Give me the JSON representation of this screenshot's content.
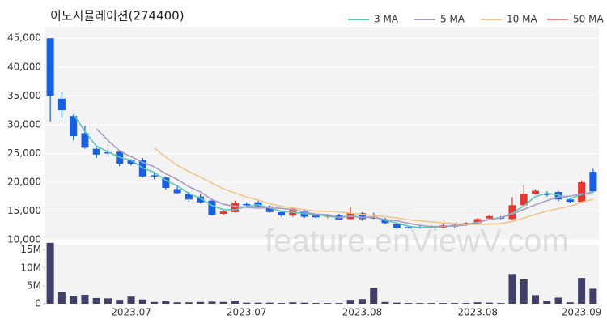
{
  "watermark": "feature.enViewV.com",
  "chart_data": [
    {
      "type": "candlestick",
      "title": "이노시뮬레이션(274400)",
      "up_color": "#e8352e",
      "down_color": "#1a5fe0",
      "open": [
        45000,
        34500,
        31500,
        28500,
        25800,
        25200,
        25300,
        23800,
        23800,
        21200,
        20800,
        18800,
        18000,
        17500,
        16800,
        14500,
        14800,
        16200,
        16500,
        15800,
        14800,
        14200,
        15000,
        14200,
        14000,
        14200,
        13600,
        14600,
        14000,
        13600,
        12700,
        12200,
        12200,
        12100,
        12100,
        12300,
        12600,
        12900,
        13700,
        13900,
        13600,
        16000,
        18000,
        18000,
        18300,
        17000,
        16600,
        21800
      ],
      "high": [
        45000,
        35700,
        31800,
        29800,
        26000,
        26000,
        25600,
        24000,
        24200,
        21800,
        21000,
        19300,
        18300,
        17900,
        16900,
        15200,
        16800,
        16500,
        16800,
        16000,
        15000,
        15500,
        15200,
        14400,
        14400,
        14500,
        15600,
        14800,
        14700,
        13800,
        12800,
        12400,
        12400,
        12500,
        12800,
        12800,
        13100,
        13800,
        14300,
        14100,
        17400,
        19500,
        18800,
        18400,
        18500,
        17200,
        20300,
        22300
      ],
      "low": [
        30500,
        31200,
        27300,
        25800,
        24200,
        24300,
        22800,
        22900,
        20800,
        20500,
        18700,
        17900,
        16600,
        16300,
        14200,
        14300,
        14700,
        15600,
        15600,
        14600,
        14000,
        14000,
        13800,
        13700,
        13800,
        13400,
        13500,
        13300,
        13600,
        12700,
        11900,
        11900,
        11900,
        12000,
        12000,
        12100,
        12400,
        12700,
        13600,
        13500,
        13400,
        15900,
        17800,
        17500,
        16700,
        16400,
        16400,
        18200
      ],
      "close": [
        35000,
        32500,
        28000,
        26000,
        24800,
        25000,
        23200,
        23200,
        21000,
        21000,
        19000,
        18100,
        17000,
        16500,
        14300,
        14900,
        16400,
        16000,
        15800,
        14800,
        14200,
        15400,
        14000,
        13900,
        14300,
        13500,
        14600,
        13600,
        13700,
        12900,
        12100,
        12100,
        12100,
        12300,
        12500,
        12600,
        12900,
        13600,
        14100,
        13700,
        16000,
        18000,
        18500,
        17800,
        17000,
        16600,
        20000,
        18400
      ],
      "lines": [
        {
          "name": "3 MA",
          "color": "#5cc8b6",
          "values": [
            null,
            null,
            31833,
            28833,
            26267,
            25267,
            24333,
            23800,
            22467,
            21733,
            20333,
            19367,
            18033,
            17200,
            15933,
            15233,
            15200,
            15767,
            16067,
            15533,
            14933,
            14800,
            14533,
            14433,
            14067,
            13900,
            14133,
            13900,
            13967,
            13400,
            12900,
            12367,
            12100,
            12167,
            12300,
            12467,
            12667,
            13033,
            13533,
            13800,
            14600,
            15900,
            17500,
            18100,
            17767,
            17133,
            17867,
            18333
          ]
        },
        {
          "name": "5 MA",
          "color": "#a99cc7",
          "values": [
            null,
            null,
            null,
            null,
            29260,
            27260,
            25400,
            24440,
            23440,
            22680,
            21480,
            20460,
            19220,
            18320,
            16980,
            16160,
            15820,
            15620,
            15480,
            15580,
            15440,
            15240,
            14840,
            14460,
            14360,
            13820,
            14060,
            13860,
            13920,
            13520,
            13280,
            12880,
            12500,
            12300,
            12340,
            12420,
            12580,
            12980,
            13540,
            13840,
            14460,
            15280,
            16060,
            16800,
            17460,
            17580,
            17980,
            17960
          ]
        },
        {
          "name": "10 MA",
          "color": "#f0c58f",
          "values": [
            null,
            null,
            null,
            null,
            null,
            null,
            null,
            null,
            null,
            25970,
            24370,
            22930,
            21830,
            20880,
            19830,
            18820,
            18140,
            17420,
            16900,
            16280,
            15800,
            15530,
            15230,
            14970,
            14970,
            14830,
            14650,
            14410,
            14200,
            14010,
            13800,
            13470,
            13280,
            13120,
            12940,
            12850,
            12680,
            12680,
            12720,
            12800,
            13190,
            13780,
            14420,
            14970,
            15420,
            15820,
            16530,
            17010
          ]
        },
        {
          "name": "50 MA",
          "color": "#f08a8a",
          "values": [
            null,
            null,
            null,
            null,
            null,
            null,
            null,
            null,
            null,
            null,
            null,
            null,
            null,
            null,
            null,
            null,
            null,
            null,
            null,
            null,
            null,
            null,
            null,
            null,
            null,
            null,
            null,
            null,
            null,
            null,
            null,
            null,
            null,
            null,
            null,
            null,
            null,
            null,
            null,
            null,
            null,
            null,
            null,
            null,
            null,
            null,
            null,
            null
          ]
        }
      ],
      "ylim": [
        10000,
        47000
      ],
      "yticks": [
        {
          "value": 10000,
          "label": "10,000"
        },
        {
          "value": 15000,
          "label": "15,000"
        },
        {
          "value": 20000,
          "label": "20,000"
        },
        {
          "value": 25000,
          "label": "25,000"
        },
        {
          "value": 30000,
          "label": "30,000"
        },
        {
          "value": 35000,
          "label": "35,000"
        },
        {
          "value": 40000,
          "label": "40,000"
        },
        {
          "value": 45000,
          "label": "45,000"
        }
      ],
      "grid": true,
      "legend": "top-right"
    },
    {
      "type": "bar",
      "color": "#3f3f68",
      "categories": [
        null,
        null,
        null,
        null,
        null,
        null,
        null,
        "2023.07",
        null,
        null,
        null,
        null,
        null,
        null,
        null,
        null,
        null,
        "2023.07",
        null,
        null,
        null,
        null,
        null,
        null,
        null,
        null,
        null,
        "2023.08",
        null,
        null,
        null,
        null,
        null,
        null,
        null,
        null,
        null,
        "2023.08",
        null,
        null,
        null,
        null,
        null,
        null,
        null,
        null,
        "2023.09",
        null
      ],
      "values": [
        17000000,
        3200000,
        2200000,
        2500000,
        1600000,
        1500000,
        1100000,
        2000000,
        1200000,
        500000,
        700000,
        400000,
        400000,
        500000,
        600000,
        500000,
        800000,
        300000,
        300000,
        300000,
        200000,
        400000,
        300000,
        200000,
        200000,
        200000,
        1100000,
        1300000,
        4500000,
        500000,
        300000,
        200000,
        200000,
        200000,
        200000,
        200000,
        200000,
        400000,
        300000,
        200000,
        8300000,
        6800000,
        2400000,
        900000,
        1700000,
        400000,
        7200000,
        4200000
      ],
      "ylim": [
        0,
        16500000
      ],
      "yticks": [
        0,
        {
          "value": 5000000,
          "label": "5M"
        },
        {
          "value": 10000000,
          "label": "10M"
        },
        {
          "value": 15000000,
          "label": "15M"
        }
      ]
    }
  ]
}
